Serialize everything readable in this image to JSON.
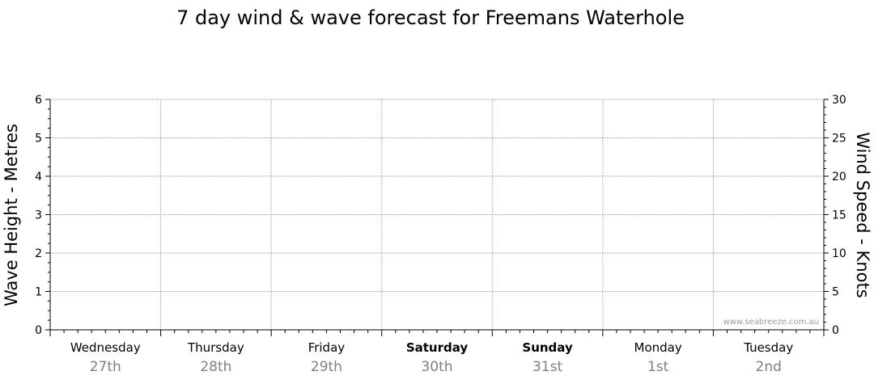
{
  "chart_data": {
    "type": "line",
    "title": "7 day wind & wave forecast for Freemans Waterhole",
    "ylabel": "Wave Height - Metres",
    "y2label": "Wind Speed - Knots",
    "ylim": [
      0,
      6
    ],
    "y2lim": [
      0,
      30
    ],
    "yticks": [
      "0",
      "1",
      "2",
      "3",
      "4",
      "5",
      "6"
    ],
    "y2ticks": [
      "0",
      "5",
      "10",
      "15",
      "20",
      "25",
      "30"
    ],
    "days": [
      {
        "name": "Wednesday",
        "date": "27th",
        "bold": false
      },
      {
        "name": "Thursday",
        "date": "28th",
        "bold": false
      },
      {
        "name": "Friday",
        "date": "29th",
        "bold": false
      },
      {
        "name": "Saturday",
        "date": "30th",
        "bold": true
      },
      {
        "name": "Sunday",
        "date": "31st",
        "bold": true
      },
      {
        "name": "Monday",
        "date": "1st",
        "bold": false
      },
      {
        "name": "Tuesday",
        "date": "2nd",
        "bold": false
      }
    ],
    "series": [],
    "grid": true,
    "watermark": "www.seabreeze.com.au"
  }
}
